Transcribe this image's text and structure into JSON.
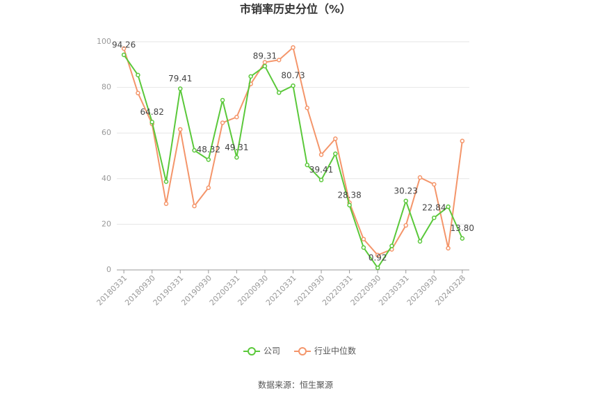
{
  "chart_data": {
    "type": "line",
    "title": "市销率历史分位（%）",
    "categories": [
      "20180331",
      null,
      "20180930",
      null,
      "20190331",
      null,
      "20190930",
      null,
      "20200331",
      null,
      "20200930",
      null,
      "20210331",
      null,
      "20210930",
      null,
      "20220331",
      null,
      "20220930",
      null,
      "20230331",
      null,
      "20230930",
      null,
      "20240328"
    ],
    "series": [
      {
        "name": "公司",
        "color": "#5ac83a",
        "values": [
          94.26,
          85.4,
          64.82,
          38.7,
          79.41,
          52.4,
          48.32,
          74.4,
          49.31,
          84.8,
          89.31,
          77.7,
          80.73,
          46,
          39.41,
          50.9,
          28.38,
          9.8,
          0.92,
          10.5,
          30.23,
          12.5,
          22.84,
          27.7,
          13.8
        ],
        "value_labels": [
          "94.26",
          null,
          "64.82",
          null,
          "79.41",
          null,
          "48.32",
          null,
          "49.31",
          null,
          "89.31",
          null,
          "80.73",
          null,
          "39.41",
          null,
          "28.38",
          null,
          "0.92",
          null,
          "30.23",
          null,
          "22.84",
          null,
          "13.80"
        ]
      },
      {
        "name": "行业中位数",
        "color": "#f4956a",
        "values": [
          97,
          77.5,
          64,
          29,
          61.6,
          28,
          36,
          64.5,
          67,
          81.5,
          91,
          92,
          97.5,
          71,
          50.5,
          57.5,
          29.5,
          13.5,
          6.5,
          9,
          19.5,
          40.5,
          37.5,
          9.5,
          56.5
        ]
      }
    ],
    "ylim": [
      0,
      100
    ],
    "yticks": [
      0,
      20,
      40,
      60,
      80,
      100
    ],
    "grid": true,
    "source": "数据来源：恒生聚源"
  }
}
